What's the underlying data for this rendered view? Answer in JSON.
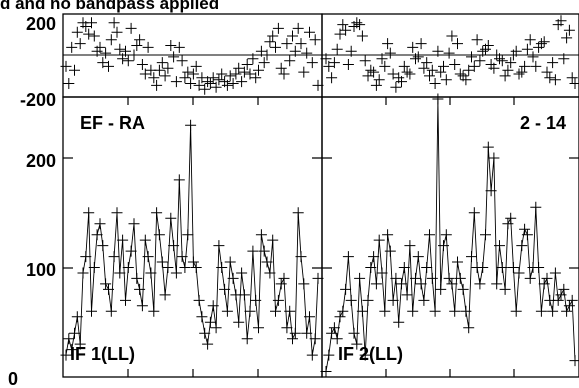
{
  "header_fragment": "d and no bandpass applied",
  "baseline_label": "EF - RA",
  "channel_label": "2 - 14",
  "panels": [
    {
      "label": "IF 1(LL)"
    },
    {
      "label": "IF 2(LL)"
    }
  ],
  "phase_axis": {
    "ticks": [
      "200",
      "-200"
    ],
    "ylim": [
      -200,
      200
    ]
  },
  "amp_axis": {
    "ticks": [
      "200",
      "100",
      "0"
    ],
    "ylim": [
      0,
      250
    ]
  },
  "colors": {
    "line": "#000000",
    "background": "#ffffff"
  },
  "chart_data": [
    {
      "type": "line",
      "panel": "IF 1(LL)",
      "quantity": "phase",
      "marker": "plus",
      "connect": false,
      "x": [
        0,
        1,
        2,
        3,
        4,
        5,
        6,
        7,
        8,
        9,
        10,
        11,
        12,
        13,
        14,
        15,
        16,
        17,
        18,
        19,
        20,
        21,
        22,
        23,
        24,
        25,
        26,
        27,
        28,
        29,
        30,
        31,
        32,
        33,
        34,
        35,
        36,
        37,
        38,
        39,
        40,
        41,
        42,
        43,
        44,
        45,
        46,
        47,
        48,
        49,
        50,
        51,
        52,
        53,
        54,
        55,
        56,
        57,
        58,
        59,
        60,
        61,
        62,
        63,
        64,
        65,
        66,
        67,
        68,
        69,
        70,
        71,
        72,
        73,
        74,
        75,
        76,
        77,
        78,
        79,
        80,
        81,
        82,
        83,
        84,
        85,
        86,
        87,
        88,
        89
      ],
      "y": [
        -60,
        -150,
        40,
        -80,
        120,
        60,
        170,
        150,
        110,
        170,
        100,
        20,
        40,
        -40,
        10,
        -60,
        80,
        170,
        120,
        30,
        -20,
        20,
        -30,
        140,
        0,
        50,
        80,
        -50,
        -100,
        40,
        -80,
        -120,
        -160,
        -80,
        -40,
        -110,
        -70,
        50,
        -10,
        -140,
        40,
        -30,
        -120,
        -90,
        -150,
        -100,
        -60,
        -160,
        -120,
        -180,
        -140,
        -150,
        -120,
        -170,
        -130,
        -100,
        -140,
        -160,
        -110,
        -150,
        -100,
        -70,
        -140,
        -90,
        -50,
        -100,
        -20,
        -120,
        -80,
        20,
        -40,
        0,
        70,
        100,
        40,
        140,
        -70,
        -100,
        60,
        -30,
        100,
        20,
        140,
        60,
        -90,
        10,
        120,
        -40,
        80,
        -160
      ]
    },
    {
      "type": "line",
      "panel": "IF 1(LL)",
      "quantity": "amplitude",
      "marker": "plus",
      "connect": true,
      "x": [
        0,
        1,
        2,
        3,
        4,
        5,
        6,
        7,
        8,
        9,
        10,
        11,
        12,
        13,
        14,
        15,
        16,
        17,
        18,
        19,
        20,
        21,
        22,
        23,
        24,
        25,
        26,
        27,
        28,
        29,
        30,
        31,
        32,
        33,
        34,
        35,
        36,
        37,
        38,
        39,
        40,
        41,
        42,
        43,
        44,
        45,
        46,
        47,
        48,
        49,
        50,
        51,
        52,
        53,
        54,
        55,
        56,
        57,
        58,
        59,
        60,
        61,
        62,
        63,
        64,
        65,
        66,
        67,
        68,
        69,
        70,
        71,
        72,
        73,
        74,
        75,
        76,
        77,
        78,
        79,
        80,
        81,
        82,
        83,
        84,
        85,
        86,
        87,
        88,
        89
      ],
      "y": [
        20,
        35,
        25,
        40,
        55,
        30,
        95,
        110,
        150,
        60,
        100,
        130,
        140,
        120,
        85,
        80,
        60,
        110,
        150,
        95,
        125,
        70,
        100,
        115,
        140,
        90,
        80,
        65,
        125,
        110,
        95,
        60,
        150,
        130,
        105,
        75,
        100,
        145,
        120,
        95,
        180,
        110,
        100,
        130,
        230,
        105,
        100,
        70,
        55,
        40,
        30,
        50,
        65,
        45,
        120,
        100,
        80,
        60,
        105,
        90,
        75,
        50,
        95,
        75,
        35,
        60,
        115,
        70,
        45,
        130,
        115,
        105,
        95,
        125,
        60,
        70,
        85,
        90,
        45,
        60,
        35,
        40,
        150,
        110,
        85,
        40,
        55,
        20,
        35,
        90
      ]
    },
    {
      "type": "line",
      "panel": "IF 2(LL)",
      "quantity": "phase",
      "marker": "plus",
      "connect": false,
      "x": [
        0,
        1,
        2,
        3,
        4,
        5,
        6,
        7,
        8,
        9,
        10,
        11,
        12,
        13,
        14,
        15,
        16,
        17,
        18,
        19,
        20,
        21,
        22,
        23,
        24,
        25,
        26,
        27,
        28,
        29,
        30,
        31,
        32,
        33,
        34,
        35,
        36,
        37,
        38,
        39,
        40,
        41,
        42,
        43,
        44,
        45,
        46,
        47,
        48,
        49,
        50,
        51,
        52,
        53,
        54,
        55,
        56,
        57,
        58,
        59,
        60,
        61,
        62,
        63,
        64,
        65,
        66,
        67,
        68,
        69,
        70,
        71,
        72,
        73,
        74,
        75,
        76,
        77,
        78,
        79,
        80,
        81,
        82,
        83,
        84,
        85,
        86,
        87,
        88,
        89
      ],
      "y": [
        -20,
        -60,
        -120,
        -40,
        30,
        110,
        160,
        130,
        -50,
        20,
        150,
        170,
        160,
        100,
        -30,
        -110,
        -80,
        -90,
        -160,
        -130,
        -20,
        -60,
        60,
        10,
        -100,
        -170,
        -120,
        -140,
        -60,
        -90,
        -100,
        40,
        -20,
        -10,
        60,
        -70,
        -40,
        -110,
        -80,
        -150,
        20,
        -90,
        -60,
        -130,
        10,
        100,
        -50,
        60,
        -100,
        -110,
        -130,
        -80,
        -10,
        -60,
        80,
        -30,
        20,
        30,
        50,
        -50,
        -70,
        0,
        -20,
        -30,
        -110,
        -80,
        -40,
        0,
        20,
        -100,
        -90,
        -60,
        30,
        80,
        -10,
        -60,
        40,
        60,
        70,
        -90,
        -120,
        -40,
        -130,
        160,
        180,
        -20,
        90,
        130,
        -120,
        -150
      ]
    },
    {
      "type": "line",
      "panel": "IF 2(LL)",
      "quantity": "amplitude",
      "marker": "plus",
      "connect": true,
      "x": [
        0,
        1,
        2,
        3,
        4,
        5,
        6,
        7,
        8,
        9,
        10,
        11,
        12,
        13,
        14,
        15,
        16,
        17,
        18,
        19,
        20,
        21,
        22,
        23,
        24,
        25,
        26,
        27,
        28,
        29,
        30,
        31,
        32,
        33,
        34,
        35,
        36,
        37,
        38,
        39,
        40,
        41,
        42,
        43,
        44,
        45,
        46,
        47,
        48,
        49,
        50,
        51,
        52,
        53,
        54,
        55,
        56,
        57,
        58,
        59,
        60,
        61,
        62,
        63,
        64,
        65,
        66,
        67,
        68,
        69,
        70,
        71,
        72,
        73,
        74,
        75,
        76,
        77,
        78,
        79,
        80,
        81,
        82,
        83,
        84,
        85,
        86,
        87,
        88,
        89
      ],
      "y": [
        5,
        20,
        40,
        45,
        35,
        55,
        60,
        80,
        110,
        70,
        40,
        30,
        90,
        60,
        20,
        70,
        100,
        110,
        85,
        125,
        95,
        60,
        130,
        115,
        70,
        90,
        50,
        85,
        100,
        75,
        120,
        60,
        90,
        110,
        85,
        70,
        100,
        130,
        90,
        60,
        270,
        80,
        120,
        130,
        90,
        85,
        60,
        105,
        90,
        80,
        60,
        45,
        110,
        150,
        100,
        85,
        100,
        130,
        210,
        170,
        200,
        85,
        120,
        100,
        80,
        140,
        145,
        100,
        60,
        95,
        120,
        135,
        130,
        90,
        100,
        155,
        100,
        60,
        85,
        90,
        70,
        60,
        95,
        70,
        75,
        80,
        60,
        65,
        70,
        15
      ]
    }
  ]
}
